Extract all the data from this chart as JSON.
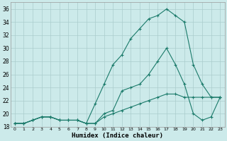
{
  "xlabel": "Humidex (Indice chaleur)",
  "background_color": "#cceaea",
  "grid_color": "#aacccc",
  "line_color": "#1a7a6a",
  "xlim": [
    -0.5,
    23.5
  ],
  "ylim": [
    18,
    37
  ],
  "xticks": [
    0,
    1,
    2,
    3,
    4,
    5,
    6,
    7,
    8,
    9,
    10,
    11,
    12,
    13,
    14,
    15,
    16,
    17,
    18,
    19,
    20,
    21,
    22,
    23
  ],
  "yticks": [
    18,
    20,
    22,
    24,
    26,
    28,
    30,
    32,
    34,
    36
  ],
  "line1_x": [
    0,
    1,
    2,
    3,
    4,
    5,
    6,
    7,
    8,
    9,
    10,
    11,
    12,
    13,
    14,
    15,
    16,
    17,
    18,
    19,
    20,
    21,
    22,
    23
  ],
  "line1_y": [
    18.5,
    18.5,
    19.0,
    19.5,
    19.5,
    19.0,
    19.0,
    19.0,
    18.5,
    21.5,
    24.5,
    27.5,
    29.0,
    31.5,
    33.0,
    34.5,
    35.0,
    36.0,
    35.0,
    34.0,
    27.5,
    24.5,
    22.5,
    22.5
  ],
  "line2_x": [
    0,
    1,
    2,
    3,
    4,
    5,
    6,
    7,
    8,
    9,
    10,
    11,
    12,
    13,
    14,
    15,
    16,
    17,
    18,
    19,
    20,
    21,
    22,
    23
  ],
  "line2_y": [
    18.5,
    18.5,
    19.0,
    19.5,
    19.5,
    19.0,
    19.0,
    19.0,
    18.5,
    18.5,
    20.0,
    20.5,
    23.5,
    24.0,
    24.5,
    26.0,
    28.0,
    30.0,
    27.5,
    24.5,
    20.0,
    19.0,
    19.5,
    22.5
  ],
  "line3_x": [
    0,
    1,
    2,
    3,
    4,
    5,
    6,
    7,
    8,
    9,
    10,
    11,
    12,
    13,
    14,
    15,
    16,
    17,
    18,
    19,
    20,
    21,
    22,
    23
  ],
  "line3_y": [
    18.5,
    18.5,
    19.0,
    19.5,
    19.5,
    19.0,
    19.0,
    19.0,
    18.5,
    18.5,
    19.5,
    20.0,
    20.5,
    21.0,
    21.5,
    22.0,
    22.5,
    23.0,
    23.0,
    22.5,
    22.5,
    22.5,
    22.5,
    22.5
  ]
}
